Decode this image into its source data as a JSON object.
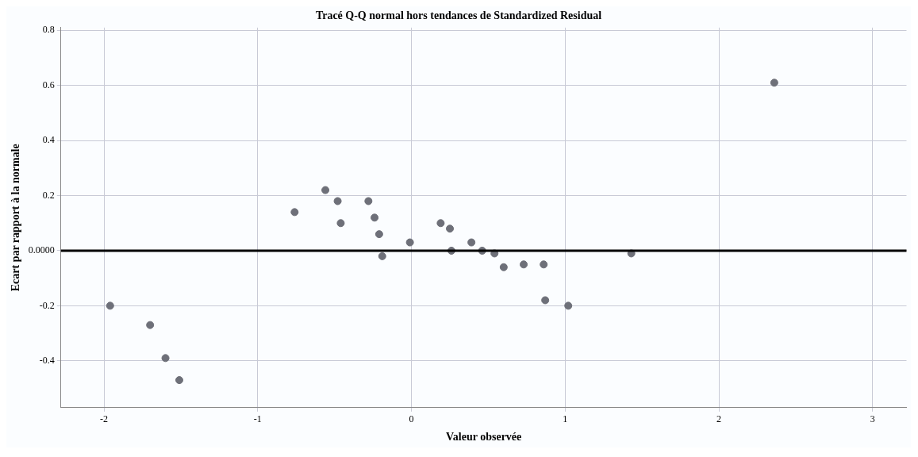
{
  "chart_data": {
    "type": "scatter",
    "title": "Tracé Q-Q normal hors tendances de Standardized Residual",
    "xlabel": "Valeur observée",
    "ylabel": "Ecart par rapport à la normale",
    "xlim": [
      -2.28,
      3.22
    ],
    "ylim": [
      -0.57,
      0.81
    ],
    "xticks": [
      -2,
      -1,
      0,
      1,
      2,
      3
    ],
    "yticks": [
      -0.4,
      -0.2,
      {
        "value": 0,
        "label": "0.0000"
      },
      0.2,
      0.4,
      0.6,
      0.8
    ],
    "grid": true,
    "marker": "circle",
    "legend": false,
    "ref_lines": [
      {
        "axis": "y",
        "value": 0,
        "color": "#000000"
      }
    ],
    "series": [
      {
        "color": "#6e7079",
        "x": [
          -1.96,
          -1.7,
          -1.6,
          -1.51,
          -0.76,
          -0.56,
          -0.48,
          -0.46,
          -0.28,
          -0.24,
          -0.21,
          -0.19,
          -0.01,
          0.19,
          0.25,
          0.26,
          0.39,
          0.46,
          0.54,
          0.6,
          0.73,
          0.86,
          0.87,
          1.02,
          1.43,
          2.36
        ],
        "values": [
          -0.2,
          -0.27,
          -0.39,
          -0.47,
          0.14,
          0.22,
          0.18,
          0.1,
          0.18,
          0.12,
          0.06,
          -0.02,
          0.03,
          0.1,
          0.08,
          0.0,
          0.03,
          0.0,
          -0.01,
          -0.06,
          -0.05,
          -0.05,
          -0.18,
          -0.2,
          -0.01,
          0.61
        ]
      }
    ]
  }
}
